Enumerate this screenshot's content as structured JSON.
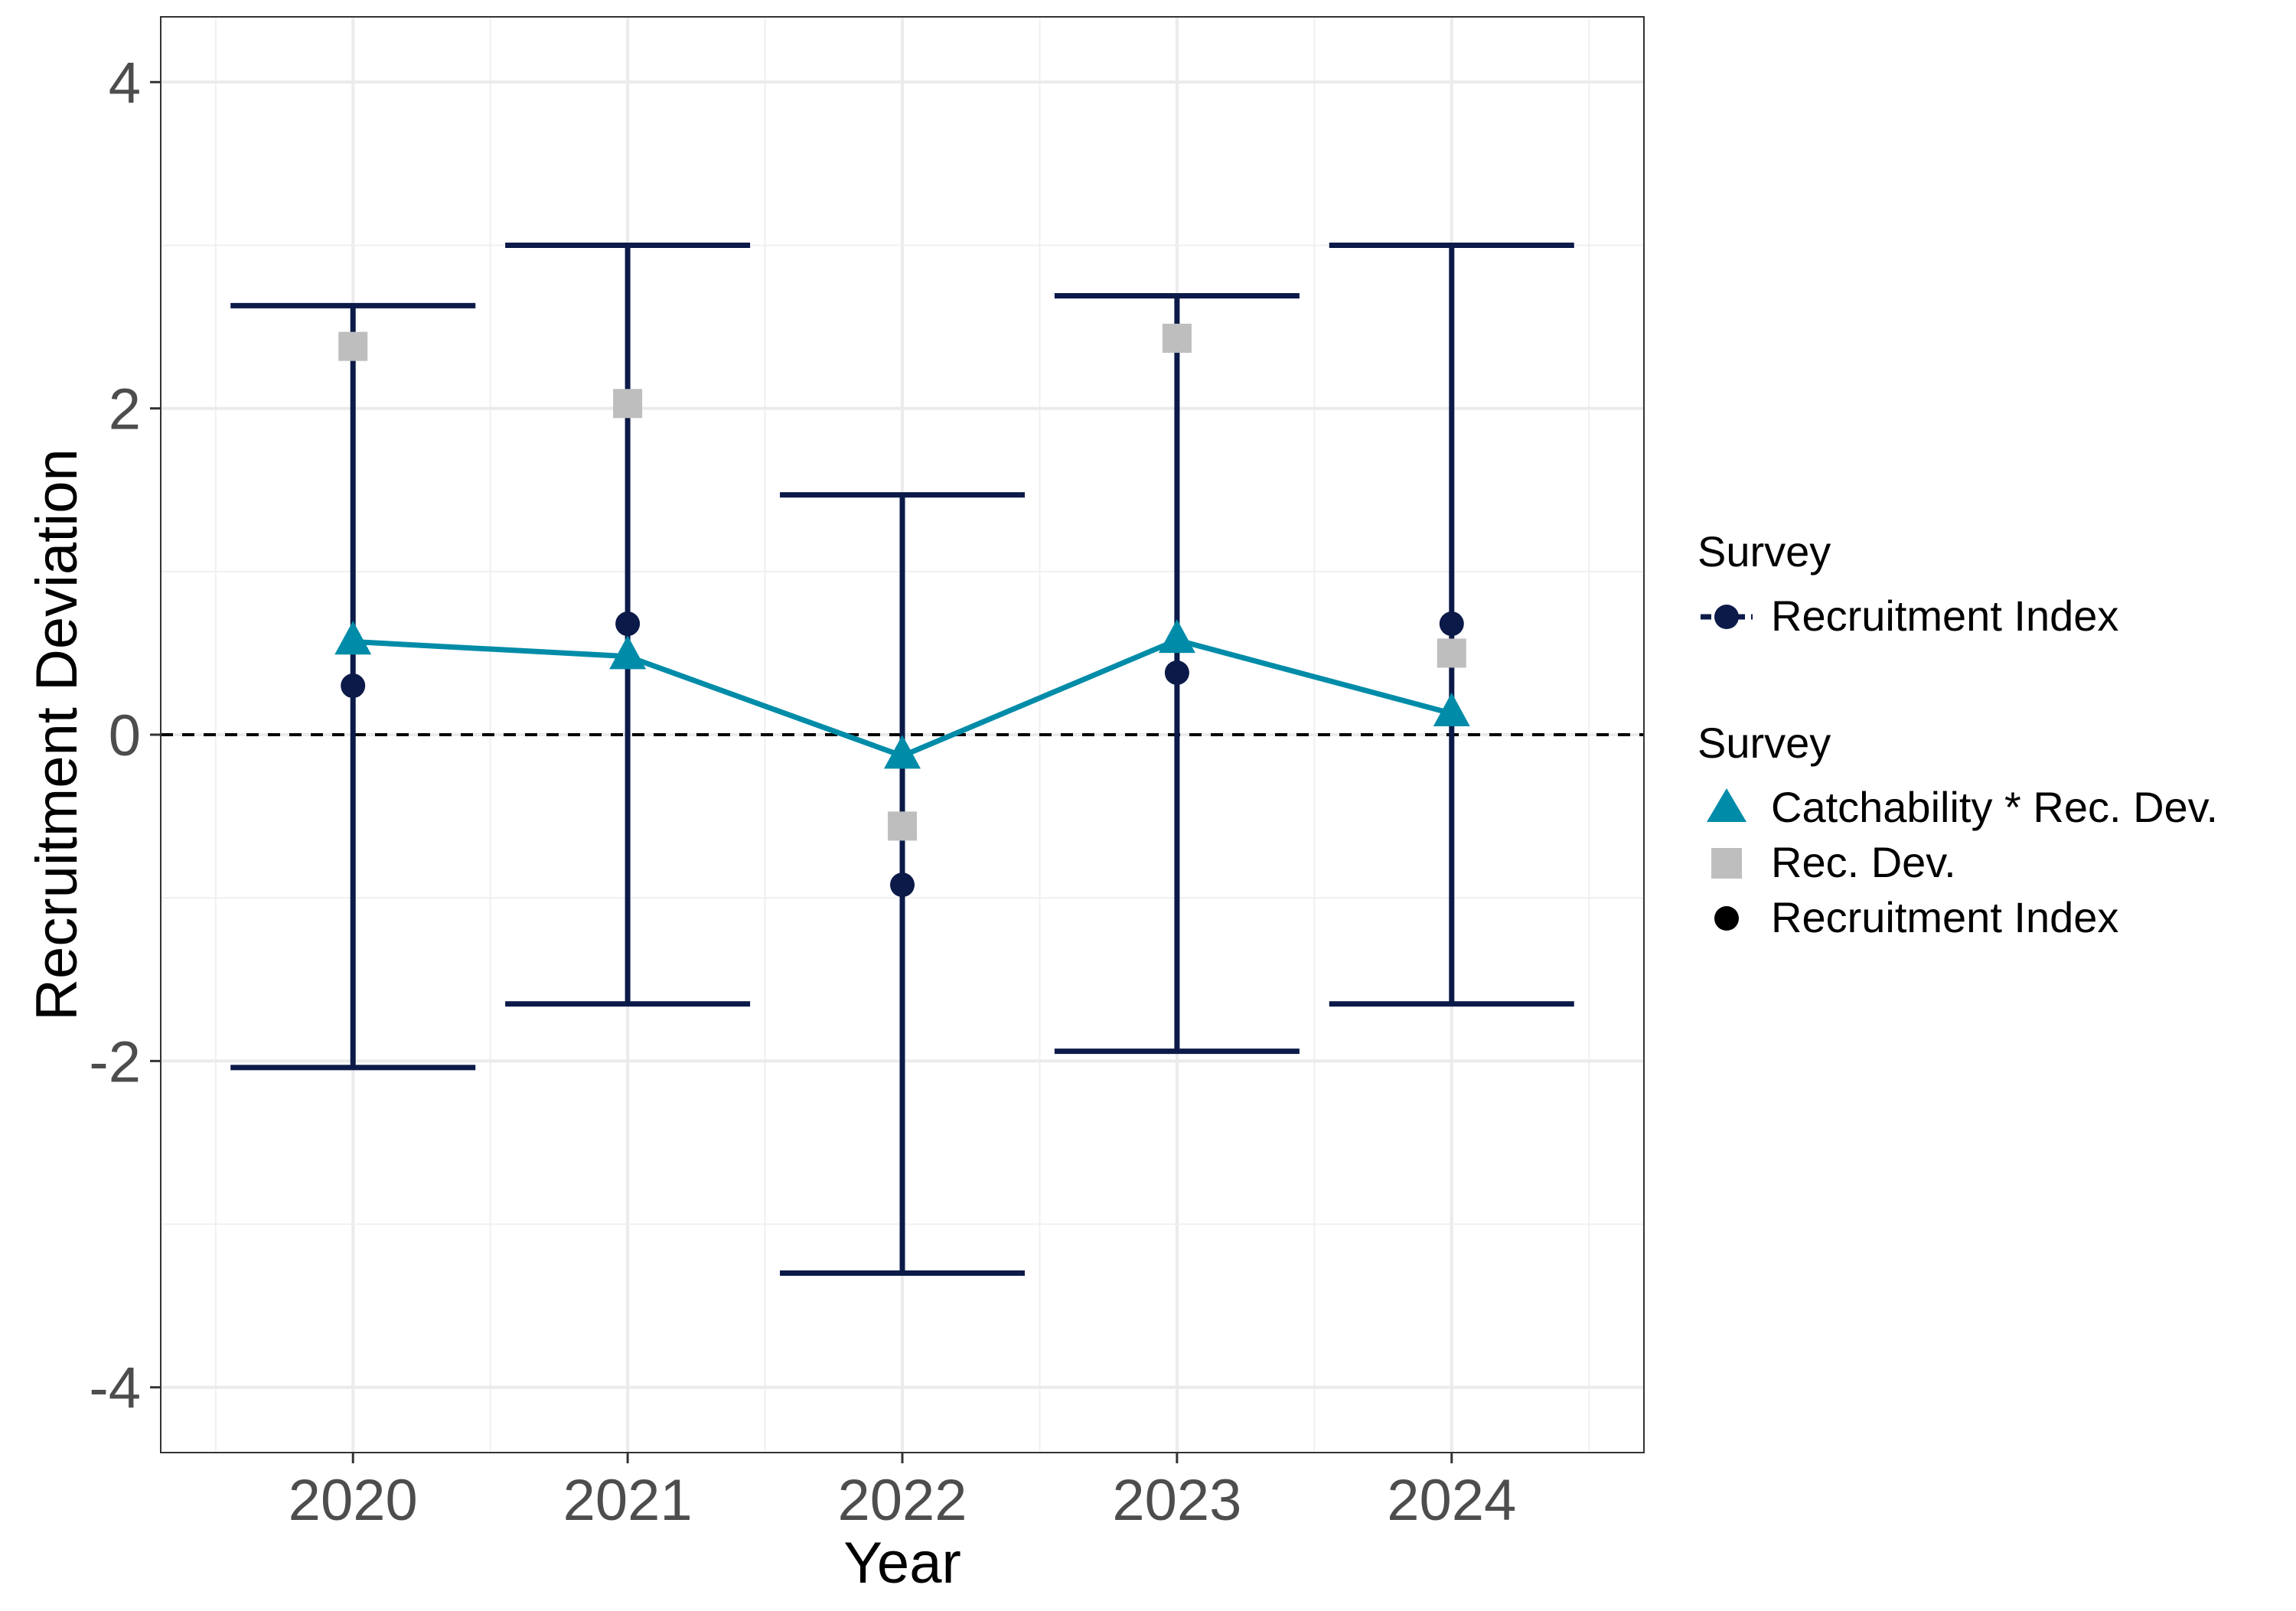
{
  "chart_data": {
    "type": "scatter",
    "xlabel": "Year",
    "ylabel": "Recruitment Deviation",
    "categories": [
      "2020",
      "2021",
      "2022",
      "2023",
      "2024"
    ],
    "ylim": [
      -4.4,
      4.4
    ],
    "y_ticks": [
      "-4",
      "-2",
      "0",
      "2",
      "4"
    ],
    "reference_line": {
      "y": 0,
      "style": "dashed"
    },
    "grid": true,
    "series": [
      {
        "name": "Recruitment Index",
        "marker": "circle",
        "color": "#0b1a48",
        "values": [
          0.3,
          0.68,
          -0.92,
          0.38,
          0.68
        ],
        "error_lower": [
          -2.04,
          -1.65,
          -3.3,
          -1.94,
          -1.65
        ],
        "error_upper": [
          2.63,
          3.0,
          1.47,
          2.69,
          3.0
        ]
      },
      {
        "name": "Catchability * Rec. Dev.",
        "marker": "triangle",
        "color": "#008ca8",
        "line": true,
        "values": [
          0.57,
          0.48,
          -0.13,
          0.58,
          0.13
        ]
      },
      {
        "name": "Rec. Dev.",
        "marker": "square",
        "color": "#bebebe",
        "values": [
          2.38,
          2.03,
          -0.56,
          2.43,
          0.5
        ]
      }
    ],
    "legend": {
      "position": "right",
      "groups": [
        {
          "title": "Survey",
          "items": [
            {
              "label": "Recruitment Index",
              "key": "line-circle",
              "color": "#0b1a48"
            }
          ]
        },
        {
          "title": "Survey",
          "items": [
            {
              "label": "Catchability * Rec. Dev.",
              "key": "triangle",
              "color": "#008ca8"
            },
            {
              "label": "Rec. Dev.",
              "key": "square",
              "color": "#bebebe"
            },
            {
              "label": "Recruitment Index",
              "key": "circle",
              "color": "#000000"
            }
          ]
        }
      ]
    }
  }
}
